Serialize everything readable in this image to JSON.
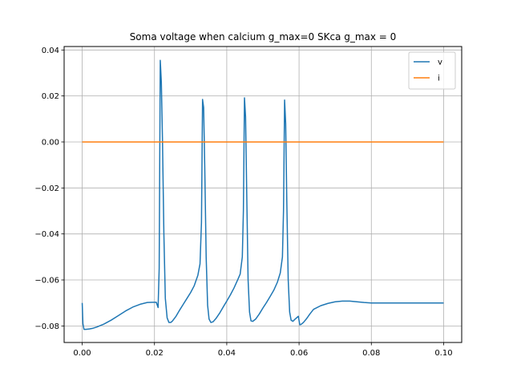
{
  "chart_data": {
    "type": "line",
    "title": "Soma voltage when calcium g_max=0 SKca g_max = 0",
    "xlabel": "",
    "ylabel": "",
    "xlim": [
      -0.005,
      0.105
    ],
    "ylim": [
      -0.0872,
      0.0415
    ],
    "xticks": [
      0.0,
      0.02,
      0.04,
      0.06,
      0.08,
      0.1
    ],
    "xtick_labels": [
      "0.00",
      "0.02",
      "0.04",
      "0.06",
      "0.08",
      "0.10"
    ],
    "yticks": [
      -0.08,
      -0.06,
      -0.04,
      -0.02,
      0.0,
      0.02,
      0.04
    ],
    "ytick_labels": [
      "−0.08",
      "−0.06",
      "−0.04",
      "−0.02",
      "0.00",
      "0.02",
      "0.04"
    ],
    "grid": true,
    "legend_position": "top-right",
    "series": [
      {
        "name": "v",
        "color": "#1f77b4",
        "x": [
          0.0,
          0.0002,
          0.0005,
          0.001,
          0.002,
          0.003,
          0.004,
          0.006,
          0.008,
          0.01,
          0.012,
          0.014,
          0.016,
          0.018,
          0.0195,
          0.0205,
          0.021,
          0.0213,
          0.0216,
          0.0219,
          0.0222,
          0.0226,
          0.023,
          0.0235,
          0.024,
          0.0245,
          0.025,
          0.026,
          0.027,
          0.028,
          0.029,
          0.03,
          0.031,
          0.032,
          0.0326,
          0.033,
          0.0333,
          0.0336,
          0.0339,
          0.0343,
          0.0347,
          0.0351,
          0.0356,
          0.0362,
          0.037,
          0.038,
          0.039,
          0.04,
          0.041,
          0.042,
          0.043,
          0.0437,
          0.0443,
          0.0446,
          0.0449,
          0.0452,
          0.0455,
          0.0459,
          0.0463,
          0.0467,
          0.0472,
          0.048,
          0.049,
          0.05,
          0.051,
          0.052,
          0.053,
          0.054,
          0.0548,
          0.0554,
          0.0557,
          0.056,
          0.0563,
          0.0566,
          0.057,
          0.0574,
          0.0578,
          0.0583,
          0.0588,
          0.0593,
          0.0598,
          0.0602,
          0.0606,
          0.0612,
          0.062,
          0.063,
          0.064,
          0.066,
          0.068,
          0.07,
          0.072,
          0.074,
          0.076,
          0.078,
          0.08,
          0.083,
          0.086,
          0.09,
          0.095,
          0.1
        ],
        "y": [
          -0.07,
          -0.079,
          -0.0815,
          -0.0815,
          -0.0813,
          -0.081,
          -0.0805,
          -0.0792,
          -0.0775,
          -0.0755,
          -0.0735,
          -0.0718,
          -0.0706,
          -0.0698,
          -0.0697,
          -0.0697,
          -0.072,
          -0.055,
          0.0355,
          0.026,
          0.002,
          -0.04,
          -0.068,
          -0.0765,
          -0.0785,
          -0.0785,
          -0.0778,
          -0.0757,
          -0.073,
          -0.0705,
          -0.068,
          -0.0655,
          -0.0625,
          -0.058,
          -0.053,
          -0.035,
          0.0185,
          0.015,
          -0.01,
          -0.05,
          -0.071,
          -0.077,
          -0.0785,
          -0.0782,
          -0.0768,
          -0.0745,
          -0.0718,
          -0.0692,
          -0.0665,
          -0.0635,
          -0.06,
          -0.0575,
          -0.05,
          -0.03,
          0.0192,
          0.011,
          -0.02,
          -0.06,
          -0.074,
          -0.0778,
          -0.078,
          -0.077,
          -0.0748,
          -0.0722,
          -0.0698,
          -0.0672,
          -0.0645,
          -0.061,
          -0.057,
          -0.05,
          -0.03,
          0.0182,
          0.008,
          -0.025,
          -0.06,
          -0.074,
          -0.0775,
          -0.078,
          -0.0772,
          -0.0765,
          -0.0758,
          -0.0795,
          -0.0793,
          -0.0785,
          -0.077,
          -0.0748,
          -0.0728,
          -0.0712,
          -0.0702,
          -0.0695,
          -0.0692,
          -0.0692,
          -0.0695,
          -0.0698,
          -0.07,
          -0.07,
          -0.07,
          -0.07,
          -0.07,
          -0.07
        ]
      },
      {
        "name": "i",
        "color": "#ff7f0e",
        "x": [
          0.0,
          0.1
        ],
        "y": [
          0.0,
          0.0
        ]
      }
    ]
  }
}
